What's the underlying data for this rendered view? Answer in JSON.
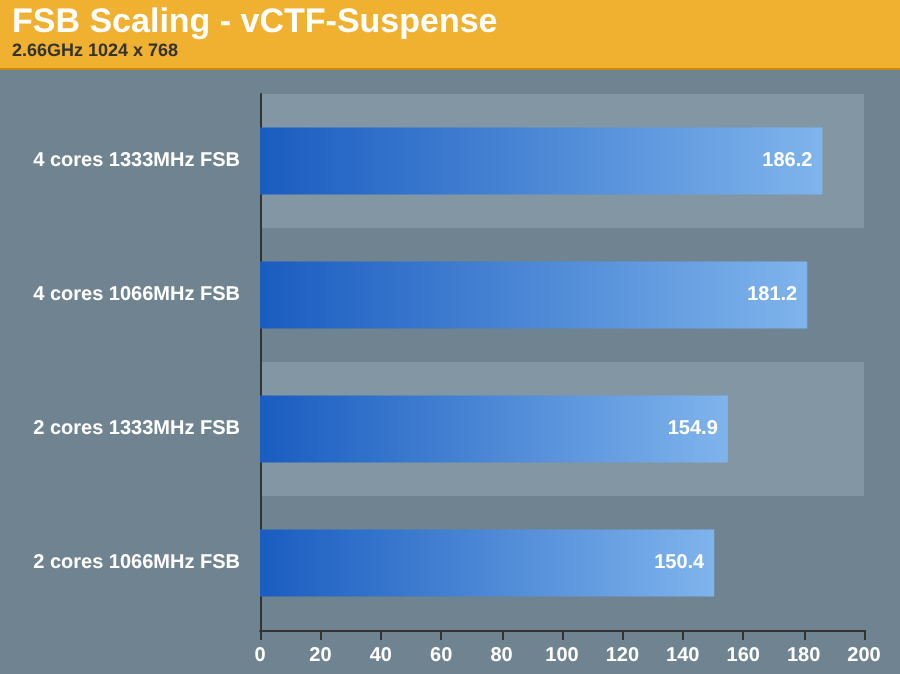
{
  "chart_data": {
    "type": "bar",
    "orientation": "horizontal",
    "title": "FSB Scaling - vCTF-Suspense",
    "subtitle": "2.66GHz 1024 x 768",
    "categories": [
      "4 cores 1333MHz FSB",
      "4 cores 1066MHz FSB",
      "2 cores 1333MHz FSB",
      "2 cores 1066MHz FSB"
    ],
    "values": [
      186.2,
      181.2,
      154.9,
      150.4
    ],
    "color": "#1a5cc0",
    "xlim": [
      0,
      200
    ],
    "xticks": [
      0,
      20,
      40,
      60,
      80,
      100,
      120,
      140,
      160,
      180,
      200
    ],
    "data_labels": true
  }
}
